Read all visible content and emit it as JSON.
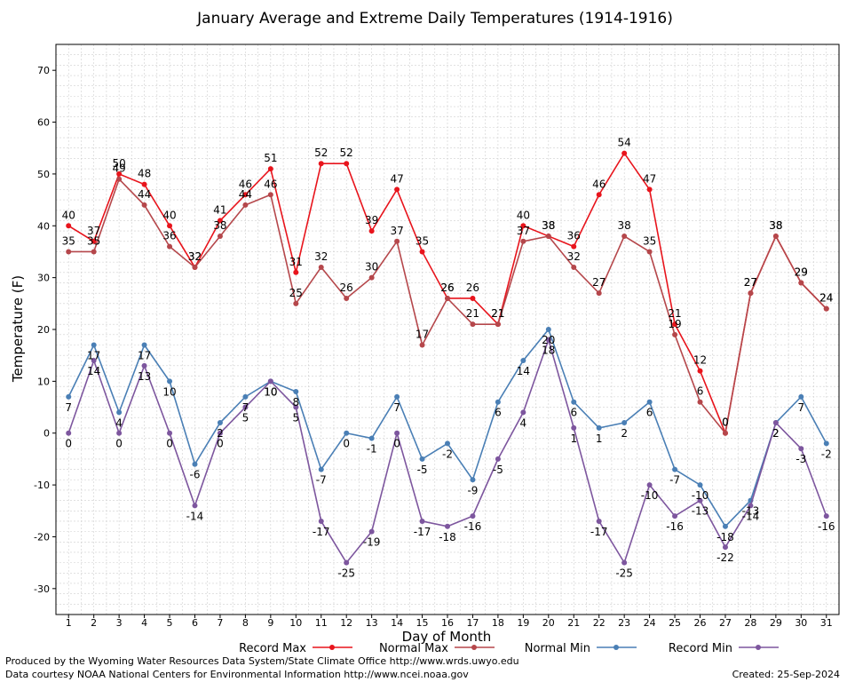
{
  "chart_data": {
    "type": "line",
    "title": "January Average and Extreme Daily Temperatures (1914-1916)",
    "xlabel": "Day of Month",
    "ylabel": "Temperature (F)",
    "ylim": [
      -35,
      75
    ],
    "yticks": [
      -30,
      -20,
      -10,
      0,
      10,
      20,
      30,
      40,
      50,
      60,
      70
    ],
    "x": [
      1,
      2,
      3,
      4,
      5,
      6,
      7,
      8,
      9,
      10,
      11,
      12,
      13,
      14,
      15,
      16,
      17,
      18,
      19,
      20,
      21,
      22,
      23,
      24,
      25,
      26,
      27,
      28,
      29,
      30,
      31
    ],
    "grid": true,
    "legend_position": "bottom",
    "series": [
      {
        "name": "Record Max",
        "color": "#e8141c",
        "values": [
          40,
          37,
          50,
          48,
          40,
          32,
          41,
          46,
          51,
          31,
          52,
          52,
          39,
          47,
          35,
          26,
          26,
          21,
          40,
          38,
          36,
          46,
          54,
          47,
          21,
          12,
          0,
          27,
          38,
          29,
          24
        ]
      },
      {
        "name": "Normal Max",
        "color": "#b5474b",
        "values": [
          35,
          35,
          49,
          44,
          36,
          32,
          38,
          44,
          46,
          25,
          32,
          26,
          30,
          37,
          17,
          26,
          21,
          21,
          37,
          38,
          32,
          27,
          38,
          35,
          19,
          6,
          0,
          27,
          38,
          29,
          24
        ]
      },
      {
        "name": "Normal Min",
        "color": "#4a7fb5",
        "values": [
          7,
          17,
          4,
          17,
          10,
          -6,
          2,
          7,
          10,
          8,
          -7,
          0,
          -1,
          7,
          -5,
          -2,
          -9,
          6,
          14,
          20,
          6,
          1,
          2,
          6,
          -7,
          -10,
          -18,
          -13,
          2,
          7,
          -2
        ]
      },
      {
        "name": "Record Min",
        "color": "#7d569e",
        "values": [
          0,
          14,
          0,
          13,
          0,
          -14,
          0,
          5,
          10,
          5,
          -17,
          -25,
          -19,
          0,
          -17,
          -18,
          -16,
          -5,
          4,
          18,
          1,
          -17,
          -25,
          -10,
          -16,
          -13,
          -22,
          -14,
          2,
          -3,
          -16
        ]
      }
    ]
  },
  "footer": {
    "credit1": "Produced by the Wyoming Water Resources Data System/State Climate Office http://www.wrds.uwyo.edu",
    "credit2": "Data courtesy NOAA National Centers for Environmental Information http://www.ncei.noaa.gov",
    "created": "Created:  25-Sep-2024"
  }
}
